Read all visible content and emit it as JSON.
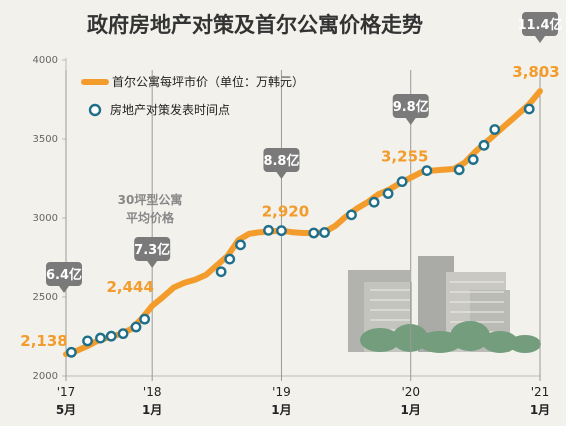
{
  "chart_data": {
    "type": "line",
    "title": "政府房地产对策及首尔公寓价格走势",
    "ylim": [
      2000,
      4000
    ],
    "yticks": [
      "2000",
      "2500",
      "3000",
      "3500",
      "4000"
    ],
    "xticks": [
      {
        "t": 0,
        "year": "'17",
        "month": "5月"
      },
      {
        "t": 8,
        "year": "'18",
        "month": "1月"
      },
      {
        "t": 20,
        "year": "'19",
        "month": "1月"
      },
      {
        "t": 32,
        "year": "'20",
        "month": "1月"
      },
      {
        "t": 44,
        "year": "'21",
        "month": "1月"
      }
    ],
    "legend": {
      "series_label": "首尔公寓每坪市价（单位：万韩元）",
      "marker_label": "房地产对策发表时间点",
      "placement": "top-left"
    },
    "series": [
      {
        "name": "首尔公寓每坪市价（单位：万韩元）",
        "color": "#f39c2b",
        "points": [
          [
            0,
            2138
          ],
          [
            1,
            2160
          ],
          [
            2,
            2190
          ],
          [
            3,
            2225
          ],
          [
            4,
            2245
          ],
          [
            5,
            2265
          ],
          [
            6,
            2295
          ],
          [
            7,
            2360
          ],
          [
            8,
            2444
          ],
          [
            9,
            2500
          ],
          [
            10,
            2560
          ],
          [
            11,
            2590
          ],
          [
            12,
            2610
          ],
          [
            13,
            2640
          ],
          [
            14,
            2700
          ],
          [
            15,
            2760
          ],
          [
            16,
            2860
          ],
          [
            17,
            2900
          ],
          [
            18,
            2910
          ],
          [
            19,
            2915
          ],
          [
            20,
            2920
          ],
          [
            21,
            2910
          ],
          [
            22,
            2905
          ],
          [
            23,
            2905
          ],
          [
            24,
            2910
          ],
          [
            25,
            2950
          ],
          [
            26,
            3010
          ],
          [
            27,
            3060
          ],
          [
            28,
            3100
          ],
          [
            29,
            3150
          ],
          [
            30,
            3180
          ],
          [
            31,
            3220
          ],
          [
            32,
            3255
          ],
          [
            33,
            3290
          ],
          [
            34,
            3300
          ],
          [
            35,
            3305
          ],
          [
            36,
            3310
          ],
          [
            37,
            3350
          ],
          [
            38,
            3420
          ],
          [
            39,
            3480
          ],
          [
            40,
            3540
          ],
          [
            41,
            3600
          ],
          [
            42,
            3660
          ],
          [
            43,
            3720
          ],
          [
            44,
            3803
          ]
        ]
      }
    ],
    "policy_points": [
      [
        0.5,
        2150
      ],
      [
        2.0,
        2222
      ],
      [
        3.2,
        2240
      ],
      [
        4.2,
        2252
      ],
      [
        5.3,
        2268
      ],
      [
        6.5,
        2310
      ],
      [
        7.3,
        2360
      ],
      [
        14.4,
        2660
      ],
      [
        15.2,
        2740
      ],
      [
        16.2,
        2830
      ],
      [
        18.8,
        2922
      ],
      [
        20.0,
        2920
      ],
      [
        23.0,
        2905
      ],
      [
        24.0,
        2908
      ],
      [
        26.5,
        3020
      ],
      [
        28.6,
        3100
      ],
      [
        29.9,
        3155
      ],
      [
        31.2,
        3230
      ],
      [
        33.5,
        3300
      ],
      [
        36.5,
        3305
      ],
      [
        37.8,
        3370
      ],
      [
        38.8,
        3460
      ],
      [
        39.8,
        3560
      ],
      [
        43.0,
        3690
      ]
    ],
    "value_labels": [
      {
        "t": 0,
        "value": "2,138"
      },
      {
        "t": 8,
        "value": "2,444"
      },
      {
        "t": 20,
        "value": "2,920"
      },
      {
        "t": 32,
        "value": "3,255"
      },
      {
        "t": 44,
        "value": "3,803"
      }
    ],
    "callouts": [
      {
        "t": 0,
        "text": "6.4亿"
      },
      {
        "t": 8,
        "text": "7.3亿"
      },
      {
        "t": 20,
        "text": "8.8亿"
      },
      {
        "t": 32,
        "text": "9.8亿"
      },
      {
        "t": 44,
        "text": "11.4亿"
      }
    ],
    "annotation": {
      "line1": "30坪型公寓",
      "line2": "平均价格"
    },
    "colors": {
      "line": "#f39c2b",
      "marker_edge": "#1f6f8b",
      "callout": "#7a7a7a",
      "background": "#f2f1ec"
    }
  }
}
